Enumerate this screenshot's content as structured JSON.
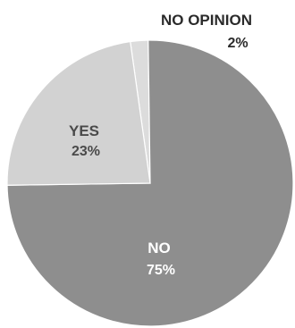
{
  "chart_data": {
    "type": "pie",
    "title": "",
    "slices": [
      {
        "label": "NO OPINION",
        "value": 2,
        "display": "2%",
        "color": "#dcdcdc"
      },
      {
        "label": "NO",
        "value": 75,
        "display": "75%",
        "color": "#8e8e8e"
      },
      {
        "label": "YES",
        "value": 23,
        "display": "23%",
        "color": "#d2d2d2"
      }
    ],
    "label_colors": {
      "outside": "#2b2b2b",
      "on_dark": "#ffffff",
      "on_light": "#4a4a4a"
    },
    "start_angle_deg": -8,
    "direction": "clockwise"
  }
}
